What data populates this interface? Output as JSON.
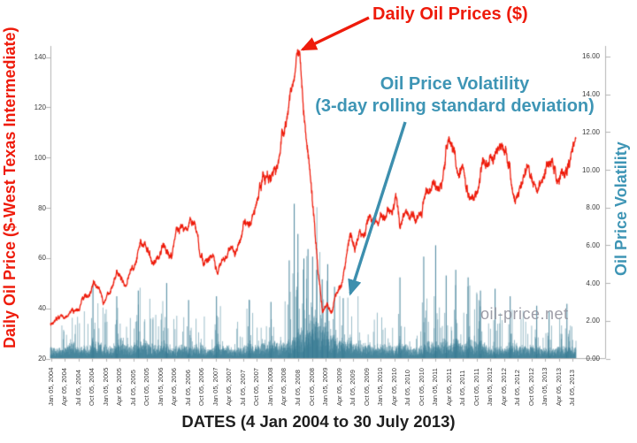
{
  "annotations": {
    "price_label": "Daily Oil Prices ($)",
    "volatility_line1": "Oil Price Volatility",
    "volatility_line2": "(3-day rolling standard deviation)"
  },
  "axes": {
    "left_title": "Daily Oil Price ($-West Texas Intermediate)",
    "right_title": "Oil Price Volatility",
    "x_title": "DATES (4 Jan 2004 to 30 July 2013)"
  },
  "watermark": "oil-price.net",
  "colors": {
    "price": "#ee1b0b",
    "volatility_bar": "#4892a8",
    "volatility_text": "#3e95b5",
    "axis_line": "#b3b3b3",
    "tick_text": "#3c3c3c",
    "watermark": "#8e8d99"
  },
  "chart_data": {
    "type": "line+bar",
    "x_label": "DATES (4 Jan 2004 to 30 July 2013)",
    "x_range": [
      "2004-01-04",
      "2013-07-30"
    ],
    "grid": false,
    "legend_position": "annotated-arrows",
    "x_tick_labels": [
      "Jan 05, 2004",
      "Apr 05, 2004",
      "Jul 05, 2004",
      "Oct 05, 2004",
      "Jan 05, 2005",
      "Apr 05, 2005",
      "Jul 05, 2005",
      "Oct 05, 2005",
      "Jan 05, 2006",
      "Apr 05, 2006",
      "Jul 05, 2006",
      "Oct 05, 2006",
      "Jan 05, 2007",
      "Apr 05, 2007",
      "Jul 05, 2007",
      "Oct 05, 2007",
      "Jan 05, 2008",
      "Apr 05, 2008",
      "Jul 05, 2008",
      "Oct 05, 2008",
      "Jan 05, 2009",
      "Apr 05, 2009",
      "Jul 05, 2009",
      "Oct 05, 2009",
      "Jan 05, 2010",
      "Apr 05, 2010",
      "Jul 05, 2010",
      "Oct 05, 2010",
      "Jan 05, 2011",
      "Apr 05, 2011",
      "Jul 05, 2011",
      "Oct 05, 2011",
      "Jan 05, 2012",
      "Apr 05, 2012",
      "Jul 05, 2012",
      "Oct 05, 2012",
      "Jan 05, 2013",
      "Apr 05, 2013",
      "Jul 05, 2013"
    ],
    "left_axis": {
      "label": "Daily Oil Price ($-West Texas Intermediate)",
      "min": 20,
      "max": 145,
      "ticks": [
        20,
        40,
        60,
        80,
        100,
        120,
        140
      ]
    },
    "right_axis": {
      "label": "Oil Price Volatility",
      "min": 0,
      "max": 16,
      "ticks": [
        "0.00",
        "2.00",
        "4.00",
        "6.00",
        "8.00",
        "10.00",
        "12.00",
        "14.00",
        "16.00"
      ]
    },
    "series": [
      {
        "name": "Daily Oil Prices ($)",
        "type": "line",
        "axis": "left",
        "color": "#ee1b0b",
        "sampling": "monthly anchor values read from plot, Jan 2004 - Jul 2013 (daily trace interpolated)",
        "start_month": "2004-01",
        "values_monthly": [
          34,
          35,
          36.5,
          37,
          40,
          38.5,
          41,
          44.5,
          46,
          53,
          49,
          43.5,
          47,
          48,
          54.5,
          53,
          50,
          56.5,
          59.5,
          65,
          65.5,
          62,
          58.5,
          59.5,
          65.5,
          62,
          62.5,
          70,
          71,
          71,
          74.5,
          73,
          63.5,
          59,
          59.5,
          62,
          54.5,
          59,
          60.5,
          64,
          63.5,
          67.5,
          74.5,
          72,
          80,
          86,
          94.5,
          91.5,
          93,
          95.5,
          105,
          112.5,
          125.5,
          134,
          141,
          116.5,
          103.5,
          76.5,
          54,
          38,
          42,
          38.5,
          46,
          50,
          59,
          69.5,
          64,
          71,
          69.5,
          77,
          78,
          74.5,
          78.5,
          76.5,
          81,
          84.5,
          73.5,
          75.5,
          76.5,
          75.5,
          76.5,
          81.5,
          84.5,
          89.5,
          89.5,
          89.5,
          102.5,
          110,
          100.5,
          95,
          96.5,
          86,
          85.5,
          86.5,
          97.5,
          99,
          100,
          102.5,
          106,
          104,
          94.5,
          83,
          87.5,
          94.5,
          94.5,
          89,
          87,
          89,
          95,
          95.5,
          93,
          92,
          94.5,
          96,
          105.5
        ]
      },
      {
        "name": "Oil Price Volatility (3-day rolling standard deviation)",
        "type": "bar",
        "axis": "right",
        "color": "#4892a8",
        "sampling": "typical monthly level (envelope) read from plot; spikes listed separately as [months_after_Jan2004, value]",
        "start_month": "2004-01",
        "envelope_monthly": [
          0.9,
          0.8,
          0.8,
          1.0,
          1.5,
          1.0,
          0.9,
          1.0,
          1.0,
          1.6,
          1.3,
          1.2,
          1.0,
          0.9,
          1.2,
          1.6,
          1.1,
          1.0,
          1.2,
          1.7,
          1.5,
          1.3,
          1.0,
          0.9,
          1.3,
          1.1,
          0.9,
          1.0,
          1.1,
          0.9,
          0.9,
          1.0,
          1.2,
          1.0,
          0.8,
          0.8,
          1.3,
          1.0,
          0.9,
          0.9,
          0.8,
          0.9,
          1.0,
          1.3,
          1.1,
          1.1,
          1.4,
          1.2,
          1.4,
          1.2,
          1.6,
          1.3,
          1.5,
          1.7,
          2.2,
          2.0,
          2.6,
          3.4,
          3.0,
          2.8,
          2.4,
          2.0,
          2.0,
          1.5,
          1.4,
          1.5,
          1.4,
          1.3,
          1.2,
          1.2,
          1.1,
          1.0,
          1.0,
          1.1,
          0.9,
          0.9,
          1.6,
          1.1,
          0.9,
          0.9,
          0.8,
          1.0,
          1.4,
          1.5,
          1.3,
          1.4,
          1.5,
          1.2,
          1.9,
          1.4,
          1.2,
          1.8,
          1.5,
          1.5,
          1.3,
          1.1,
          0.9,
          0.9,
          1.0,
          1.0,
          1.2,
          1.3,
          1.1,
          1.0,
          0.9,
          1.1,
          0.9,
          0.8,
          0.8,
          0.8,
          0.9,
          1.0,
          0.9,
          0.9,
          1.0
        ],
        "spikes": [
          [
            9.3,
            3.9
          ],
          [
            14.5,
            3.3
          ],
          [
            19.2,
            3.6
          ],
          [
            25.4,
            4.0
          ],
          [
            30.2,
            3.1
          ],
          [
            36.3,
            3.3
          ],
          [
            43.5,
            3.1
          ],
          [
            48.2,
            3.0
          ],
          [
            52.2,
            5.2
          ],
          [
            53.3,
            8.2
          ],
          [
            54.1,
            6.6
          ],
          [
            55.4,
            5.3
          ],
          [
            56.3,
            5.8
          ],
          [
            57.3,
            5.4
          ],
          [
            58.2,
            4.7
          ],
          [
            59.4,
            4.2
          ],
          [
            60.6,
            5.0
          ],
          [
            62.1,
            3.8
          ],
          [
            64.0,
            3.2
          ],
          [
            76.4,
            4.3
          ],
          [
            81.6,
            5.4
          ],
          [
            84.2,
            6.0
          ],
          [
            86.5,
            4.4
          ],
          [
            88.6,
            4.7
          ],
          [
            91.3,
            4.3
          ],
          [
            94.0,
            3.6
          ],
          [
            97.2,
            3.7
          ],
          [
            100.5,
            3.3
          ],
          [
            106.3,
            2.8
          ],
          [
            109.0,
            2.5
          ],
          [
            112.9,
            2.9
          ]
        ]
      }
    ]
  }
}
